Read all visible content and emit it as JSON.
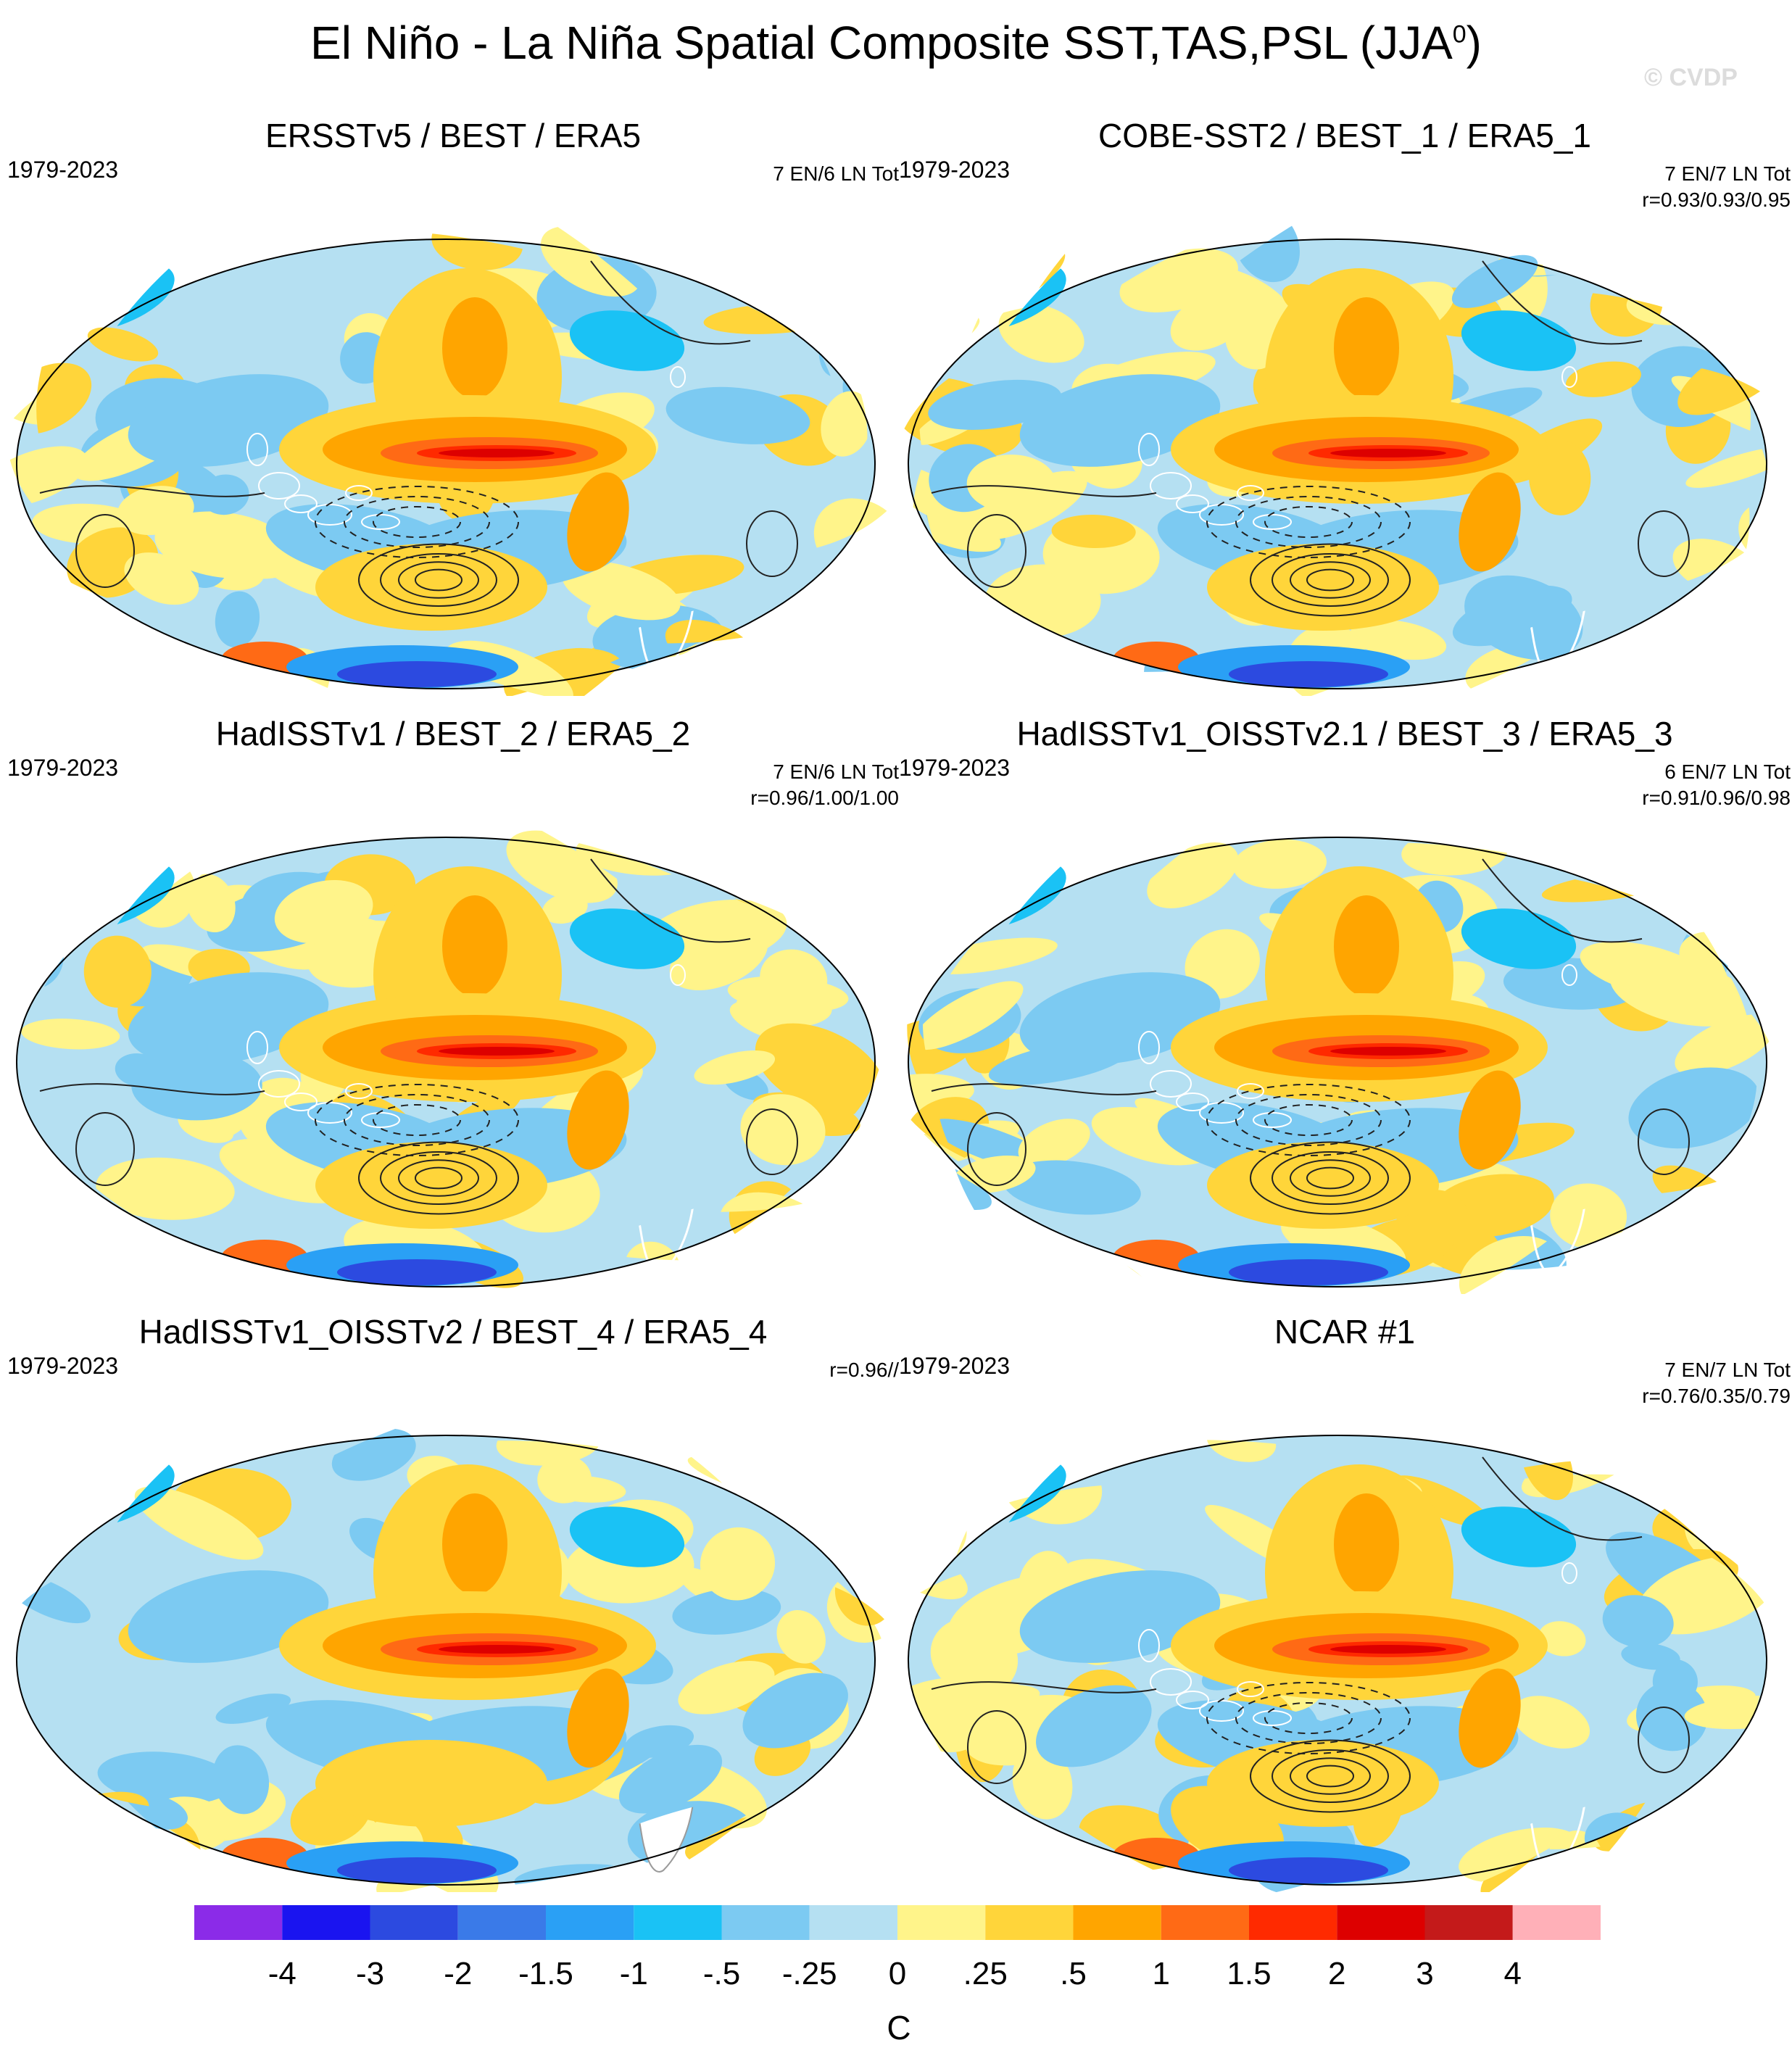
{
  "title": "El Niño - La Niña Spatial Composite SST,TAS,PSL (JJA",
  "title_superscript": "0",
  "title_close": ")",
  "watermark": "© CVDP",
  "panels": [
    {
      "title": "ERSSTv5 / BEST / ERA5",
      "period": "1979-2023",
      "stats1": "7 EN/6 LN Tot",
      "stats2": "",
      "land_masked": false
    },
    {
      "title": "COBE-SST2 / BEST_1 / ERA5_1",
      "period": "1979-2023",
      "stats1": "7 EN/7 LN Tot",
      "stats2": "r=0.93/0.93/0.95",
      "land_masked": false
    },
    {
      "title": "HadISSTv1 / BEST_2 / ERA5_2",
      "period": "1979-2023",
      "stats1": "7 EN/6 LN Tot",
      "stats2": "r=0.96/1.00/1.00",
      "land_masked": false
    },
    {
      "title": "HadISSTv1_OISSTv2.1 / BEST_3 / ERA5_3",
      "period": "1979-2023",
      "stats1": "6 EN/7 LN Tot",
      "stats2": "r=0.91/0.96/0.98",
      "land_masked": false
    },
    {
      "title": "HadISSTv1_OISSTv2 / BEST_4 / ERA5_4",
      "period": "1979-2023",
      "stats1": "r=0.96//",
      "stats2": "",
      "land_masked": true
    },
    {
      "title": "NCAR #1",
      "period": "1979-2023",
      "stats1": "7 EN/7 LN Tot",
      "stats2": "r=0.76/0.35/0.79",
      "land_masked": false
    }
  ],
  "colorbar": {
    "colors": [
      "#8b2be8",
      "#1a14f0",
      "#2c4ae0",
      "#3a7ae8",
      "#2aa0f5",
      "#1ac2f5",
      "#7ccaf2",
      "#b5e0f2",
      "#fff48a",
      "#ffd53a",
      "#ffa500",
      "#ff6a15",
      "#ff2a00",
      "#dd0000",
      "#c41a1a",
      "#ffb0b8"
    ],
    "labels": [
      "-4",
      "-3",
      "-2",
      "-1.5",
      "-1",
      "-.5",
      "-.25",
      "0",
      ".25",
      ".5",
      "1",
      "1.5",
      "2",
      "3",
      "4"
    ],
    "unit": "C"
  }
}
